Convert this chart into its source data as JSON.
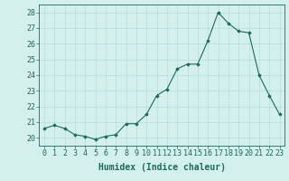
{
  "x": [
    0,
    1,
    2,
    3,
    4,
    5,
    6,
    7,
    8,
    9,
    10,
    11,
    12,
    13,
    14,
    15,
    16,
    17,
    18,
    19,
    20,
    21,
    22,
    23
  ],
  "y": [
    20.6,
    20.8,
    20.6,
    20.2,
    20.1,
    19.9,
    20.1,
    20.2,
    20.9,
    20.9,
    21.5,
    22.7,
    23.1,
    24.4,
    24.7,
    24.7,
    26.2,
    28.0,
    27.3,
    26.8,
    26.7,
    24.0,
    22.7,
    21.5
  ],
  "line_color": "#1a6b5a",
  "marker_color": "#1a6b5a",
  "bg_color": "#d4f0ed",
  "grid_color": "#b0d8d3",
  "xlabel": "Humidex (Indice chaleur)",
  "ylabel_ticks": [
    20,
    21,
    22,
    23,
    24,
    25,
    26,
    27,
    28
  ],
  "xtick_labels": [
    "0",
    "1",
    "2",
    "3",
    "4",
    "5",
    "6",
    "7",
    "8",
    "9",
    "10",
    "11",
    "12",
    "13",
    "14",
    "15",
    "16",
    "17",
    "18",
    "19",
    "20",
    "21",
    "22",
    "23"
  ],
  "ylim": [
    19.5,
    28.5
  ],
  "xlim": [
    -0.5,
    23.5
  ],
  "label_fontsize": 7,
  "tick_fontsize": 6
}
